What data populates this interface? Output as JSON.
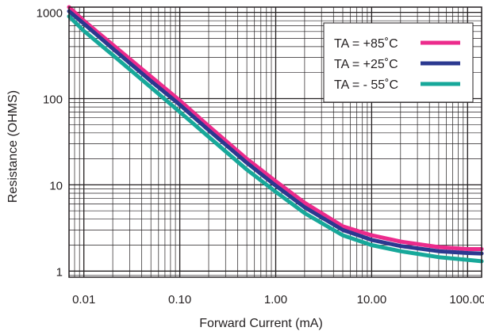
{
  "chart_data": {
    "type": "line",
    "title": "",
    "xlabel": "Forward Current (mA)",
    "ylabel": "Resistance (OHMS)",
    "x_scale": "log",
    "y_scale": "log",
    "xlim": [
      0.007,
      140
    ],
    "ylim": [
      0.85,
      1150
    ],
    "x_tick_values": [
      0.01,
      0.1,
      1,
      10,
      100
    ],
    "x_tick_labels": [
      "0.01",
      "0.10",
      "1.00",
      "10.00",
      "100.00"
    ],
    "y_tick_values": [
      1,
      10,
      100,
      1000
    ],
    "y_tick_labels": [
      "1",
      "10",
      "100",
      "1000"
    ],
    "grid": true,
    "legend_position": "top-right",
    "series": [
      {
        "name": "TA = +85˚C",
        "color": "#ec2b8c",
        "x": [
          0.007,
          0.01,
          0.02,
          0.05,
          0.1,
          0.2,
          0.5,
          1,
          2,
          5,
          10,
          20,
          50,
          100,
          140
        ],
        "y": [
          1150,
          800,
          420,
          180,
          95,
          48,
          20,
          11,
          6.2,
          3.3,
          2.6,
          2.2,
          1.9,
          1.8,
          1.8
        ]
      },
      {
        "name": "TA = +25˚C",
        "color": "#2b3990",
        "x": [
          0.007,
          0.01,
          0.02,
          0.05,
          0.1,
          0.2,
          0.5,
          1,
          2,
          5,
          10,
          20,
          50,
          100,
          140
        ],
        "y": [
          1030,
          740,
          380,
          160,
          85,
          43,
          18,
          9.8,
          5.5,
          3.0,
          2.3,
          1.95,
          1.7,
          1.62,
          1.6
        ]
      },
      {
        "name": "TA = - 55˚C",
        "color": "#17a89a",
        "x": [
          0.007,
          0.01,
          0.02,
          0.05,
          0.1,
          0.2,
          0.5,
          1,
          2,
          5,
          10,
          20,
          50,
          100,
          140
        ],
        "y": [
          900,
          610,
          320,
          135,
          70,
          36,
          15,
          8.3,
          4.7,
          2.6,
          2.0,
          1.7,
          1.45,
          1.35,
          1.3
        ]
      }
    ]
  }
}
